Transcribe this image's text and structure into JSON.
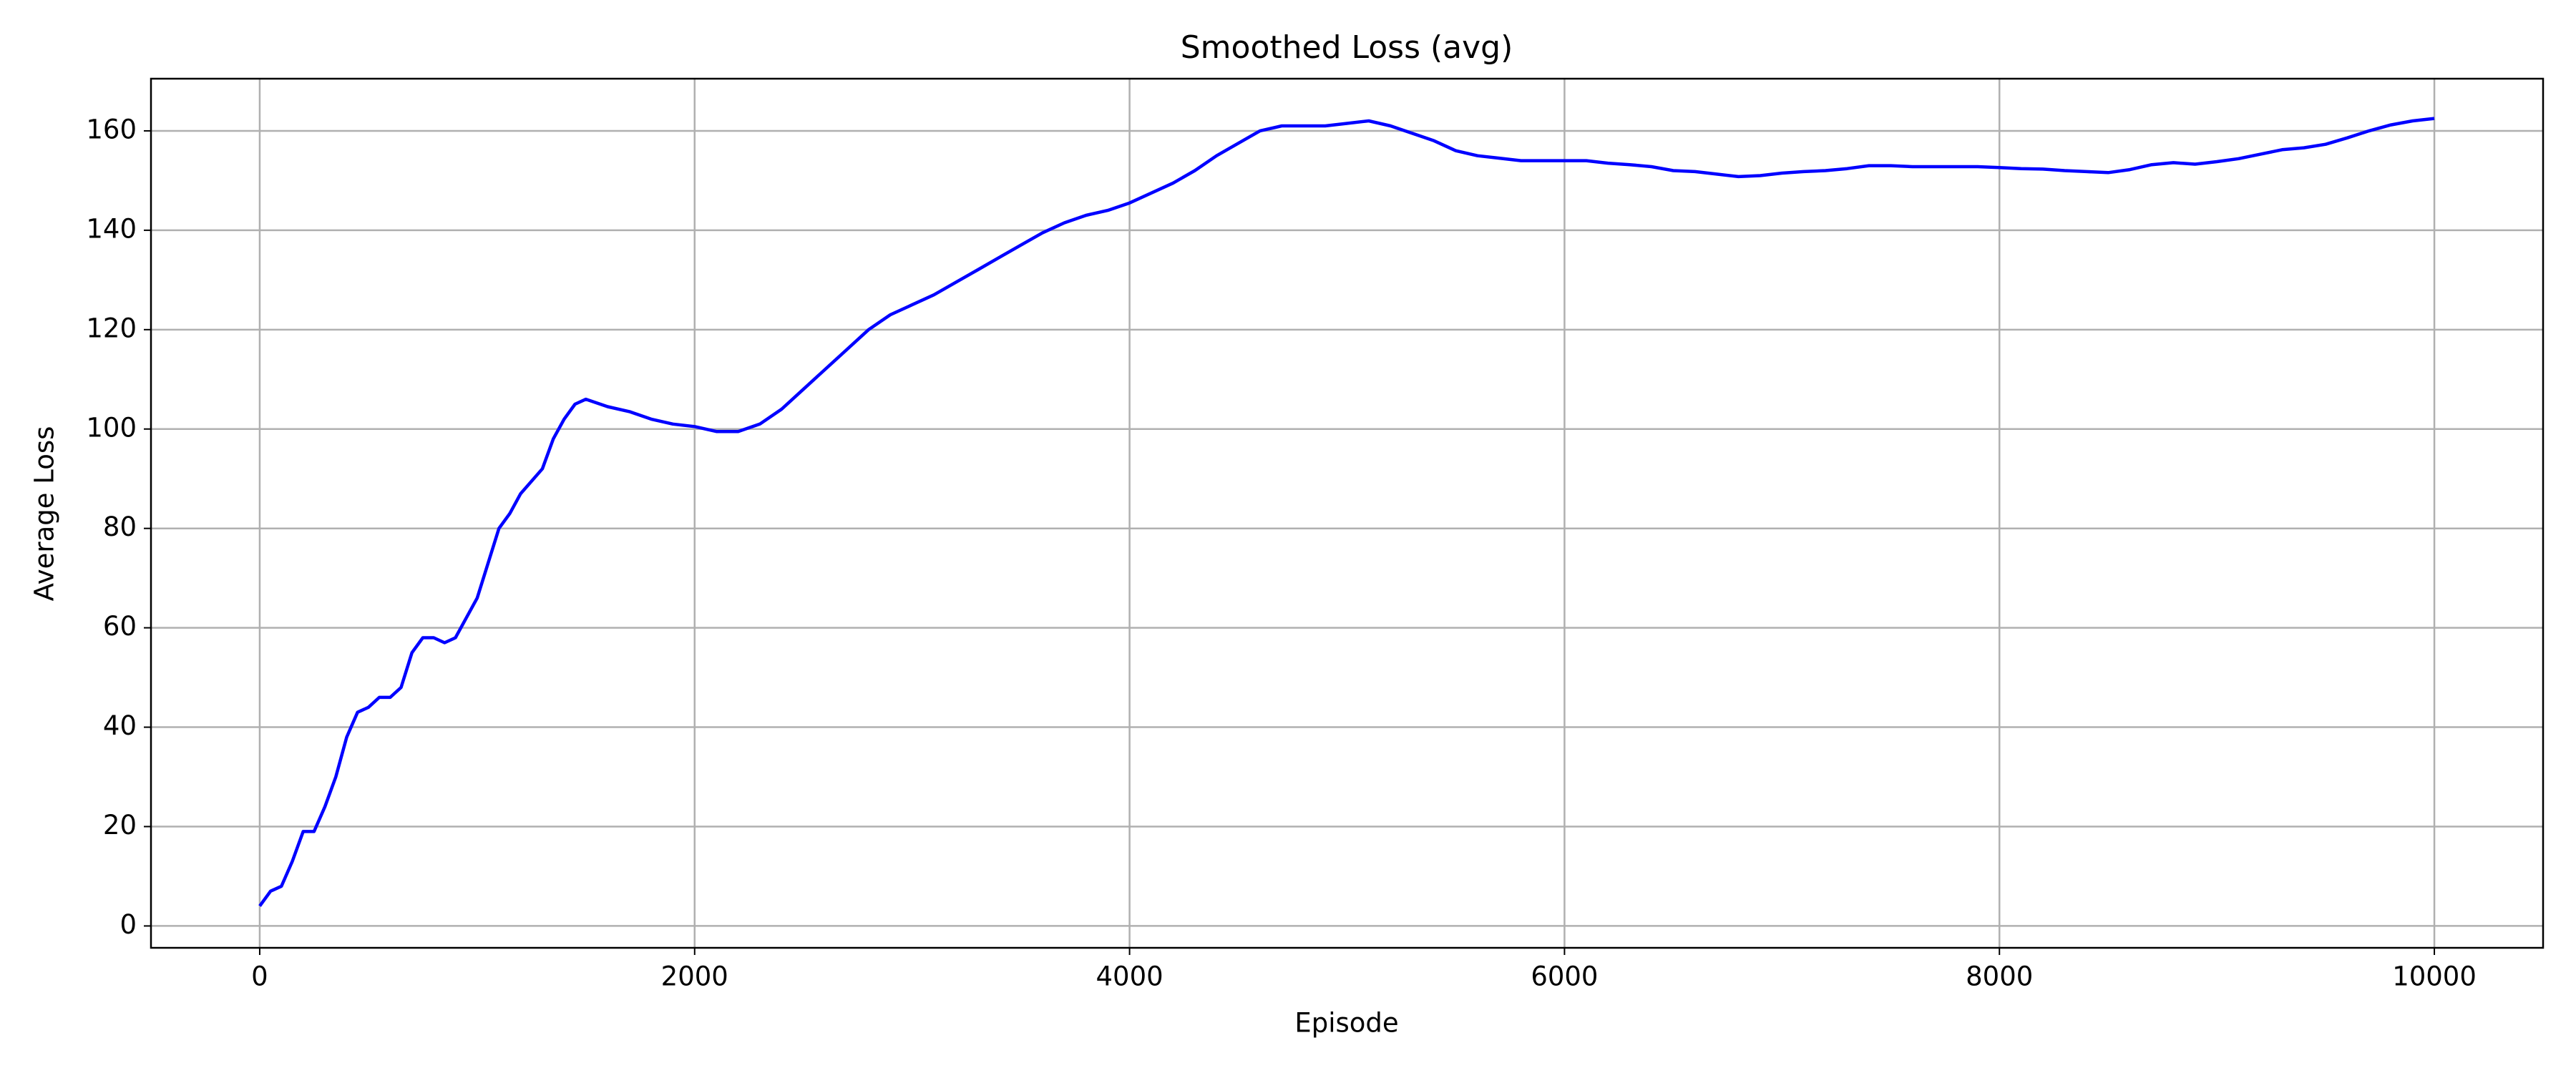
{
  "chart_data": {
    "type": "line",
    "title": "Smoothed Loss (avg)",
    "x_label": "Episode",
    "y_label": "Average Loss",
    "x": [
      0,
      50,
      100,
      150,
      200,
      250,
      300,
      350,
      400,
      450,
      500,
      550,
      600,
      650,
      700,
      750,
      800,
      850,
      900,
      950,
      1000,
      1050,
      1100,
      1150,
      1200,
      1300,
      1350,
      1400,
      1450,
      1500,
      1600,
      1700,
      1800,
      1900,
      2000,
      2100,
      2200,
      2300,
      2400,
      2500,
      2600,
      2700,
      2800,
      2900,
      3000,
      3100,
      3200,
      3300,
      3400,
      3500,
      3600,
      3700,
      3800,
      3900,
      4000,
      4100,
      4200,
      4300,
      4400,
      4500,
      4600,
      4700,
      4800,
      4900,
      5000,
      5100,
      5200,
      5300,
      5400,
      5500,
      5600,
      5700,
      5800,
      5900,
      6000,
      6100,
      6200,
      6300,
      6400,
      6500,
      6600,
      6700,
      6800,
      6900,
      7000,
      7100,
      7200,
      7300,
      7400,
      7500,
      7600,
      7700,
      7800,
      7900,
      8000,
      8100,
      8200,
      8300,
      8400,
      8500,
      8600,
      8700,
      8800,
      8900,
      9000,
      9100,
      9200,
      9300,
      9400,
      9500,
      9600,
      9700,
      9800,
      9900,
      10000
    ],
    "values": [
      4,
      7,
      8,
      13,
      19,
      19,
      24,
      30,
      38,
      43,
      44,
      46,
      46,
      48,
      55,
      58,
      58,
      57,
      58,
      62,
      66,
      73,
      80,
      83,
      87,
      92,
      98,
      102,
      105,
      106,
      104.5,
      103.5,
      102,
      101,
      100.5,
      99.5,
      99.5,
      101,
      104,
      108,
      112,
      116,
      120,
      123,
      125,
      127,
      129.5,
      132,
      134.5,
      137,
      139.5,
      141.5,
      143,
      144,
      145.5,
      147.5,
      149.5,
      152,
      155,
      157.5,
      160,
      161,
      161,
      161,
      161.5,
      162,
      161,
      159.5,
      158,
      156,
      155,
      154.5,
      154,
      154,
      154,
      154,
      153.5,
      153.2,
      152.8,
      152,
      151.8,
      151.3,
      150.8,
      151,
      151.5,
      151.8,
      152,
      152.4,
      153,
      153,
      152.8,
      152.8,
      152.8,
      152.8,
      152.6,
      152.4,
      152.3,
      152,
      151.8,
      151.6,
      152.2,
      153.2,
      153.6,
      153.3,
      153.8,
      154.4,
      155.3,
      156.2,
      156.6,
      157.3,
      158.6,
      160,
      161.2,
      162,
      162.5
    ],
    "color": "#0000ff",
    "xlim": [
      -500,
      10500
    ],
    "xticks": [
      0,
      2000,
      4000,
      6000,
      8000,
      10000
    ],
    "ylim": [
      -4.4,
      170.5
    ],
    "yticks": [
      0,
      20,
      40,
      60,
      80,
      100,
      120,
      140,
      160
    ],
    "grid": true
  }
}
